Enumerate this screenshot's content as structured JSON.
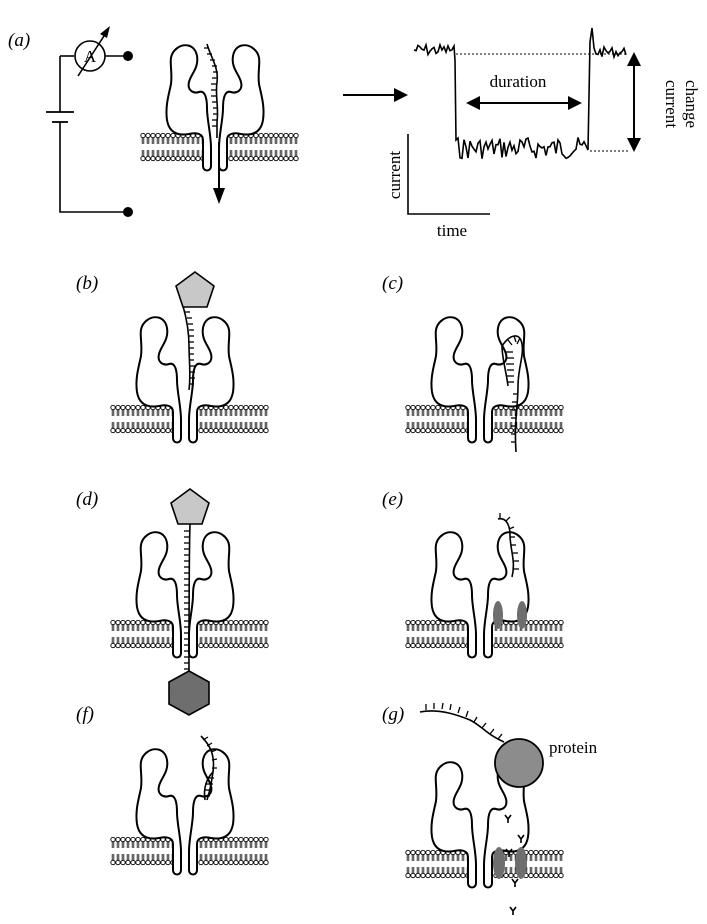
{
  "panels": {
    "a": "a",
    "b": "b",
    "c": "c",
    "d": "d",
    "e": "e",
    "f": "f",
    "g": "g"
  },
  "circuit": {
    "ammeter_label": "A"
  },
  "trace": {
    "duration_label": "duration",
    "current_change_line1": "current",
    "current_change_line2": "change",
    "y_axis_label": "current",
    "x_axis_label": "time"
  },
  "protein_label": "protein",
  "colors": {
    "membrane": "#000000",
    "pentagon": "#c8c8c8",
    "hexagon": "#6e6e6e",
    "protein": "#8c8c8c",
    "constriction": "#6e6e6e"
  }
}
